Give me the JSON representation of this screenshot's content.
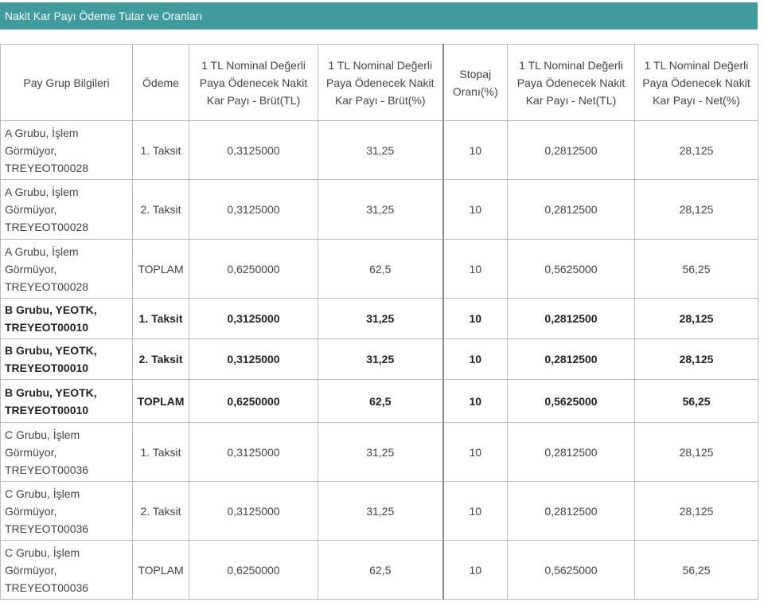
{
  "header": {
    "title": "Nakit Kar Payı Ödeme Tutar ve Oranları"
  },
  "table": {
    "columns": [
      "Pay Grup Bilgileri",
      "Ödeme",
      "1 TL Nominal Değerli Paya Ödenecek Nakit Kar Payı - Brüt(TL)",
      "1 TL Nominal Değerli Paya Ödenecek Nakit Kar Payı - Brüt(%)",
      "Stopaj Oranı(%)",
      "1 TL Nominal Değerli Paya Ödenecek Nakit Kar Payı - Net(TL)",
      "1 TL Nominal Değerli Paya Ödenecek Nakit Kar Payı - Net(%)"
    ],
    "rows": [
      [
        "A Grubu, İşlem Görmüyor, TREYEOT00028",
        "1. Taksit",
        "0,3125000",
        "31,25",
        "10",
        "0,2812500",
        "28,125"
      ],
      [
        "A Grubu, İşlem Görmüyor, TREYEOT00028",
        "2. Taksit",
        "0,3125000",
        "31,25",
        "10",
        "0,2812500",
        "28,125"
      ],
      [
        "A Grubu, İşlem Görmüyor, TREYEOT00028",
        "TOPLAM",
        "0,6250000",
        "62,5",
        "10",
        "0,5625000",
        "56,25"
      ],
      [
        "B Grubu, YEOTK, TREYEOT00010",
        "1. Taksit",
        "0,3125000",
        "31,25",
        "10",
        "0,2812500",
        "28,125"
      ],
      [
        "B Grubu, YEOTK, TREYEOT00010",
        "2. Taksit",
        "0,3125000",
        "31,25",
        "10",
        "0,2812500",
        "28,125"
      ],
      [
        "B Grubu, YEOTK, TREYEOT00010",
        "TOPLAM",
        "0,6250000",
        "62,5",
        "10",
        "0,5625000",
        "56,25"
      ],
      [
        "C Grubu, İşlem Görmüyor, TREYEOT00036",
        "1. Taksit",
        "0,3125000",
        "31,25",
        "10",
        "0,2812500",
        "28,125"
      ],
      [
        "C Grubu, İşlem Görmüyor, TREYEOT00036",
        "2. Taksit",
        "0,3125000",
        "31,25",
        "10",
        "0,2812500",
        "28,125"
      ],
      [
        "C Grubu, İşlem Görmüyor, TREYEOT00036",
        "TOPLAM",
        "0,6250000",
        "62,5",
        "10",
        "0,5625000",
        "56,25"
      ]
    ]
  }
}
